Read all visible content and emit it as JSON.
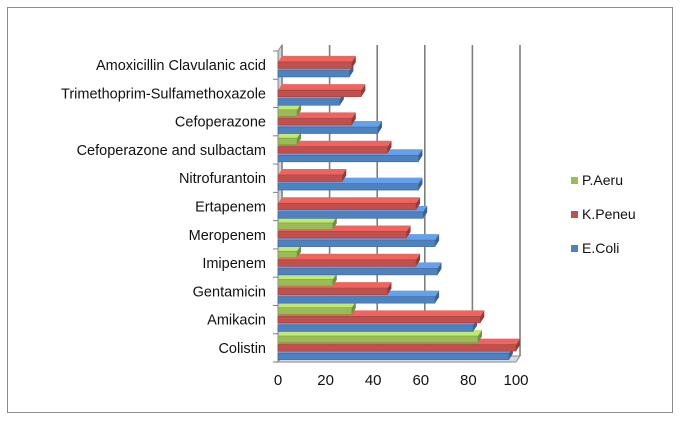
{
  "chart_data": {
    "type": "bar",
    "orientation": "horizontal",
    "categories": [
      "Colistin",
      "Amikacin",
      "Gentamicin",
      "Imipenem",
      "Meropenem",
      "Ertapenem",
      "Nitrofurantoin",
      "Cefoperazone  and sulbactam",
      "Cefoperazone",
      "Trimethoprim-Sulfamethoxazole",
      "Amoxicillin Clavulanic acid"
    ],
    "series": [
      {
        "name": "E.Coli",
        "color": "#4f81bd",
        "values": [
          97,
          82,
          66,
          67,
          66,
          61,
          59,
          59,
          42,
          26,
          30
        ]
      },
      {
        "name": "K.Peneu",
        "color": "#c0504d",
        "values": [
          100,
          85,
          46,
          58,
          54,
          58,
          27,
          46,
          31,
          35,
          31
        ]
      },
      {
        "name": "P.Aeru",
        "color": "#9bbb59",
        "values": [
          84,
          31,
          23,
          8,
          23,
          0,
          0,
          8,
          8,
          0,
          0
        ]
      }
    ],
    "xlim": [
      0,
      100
    ],
    "x_ticks": [
      "0",
      "20",
      "40",
      "60",
      "80",
      "100"
    ],
    "grid": true,
    "legend_position": "right",
    "title": "",
    "xlabel": "",
    "ylabel": ""
  }
}
